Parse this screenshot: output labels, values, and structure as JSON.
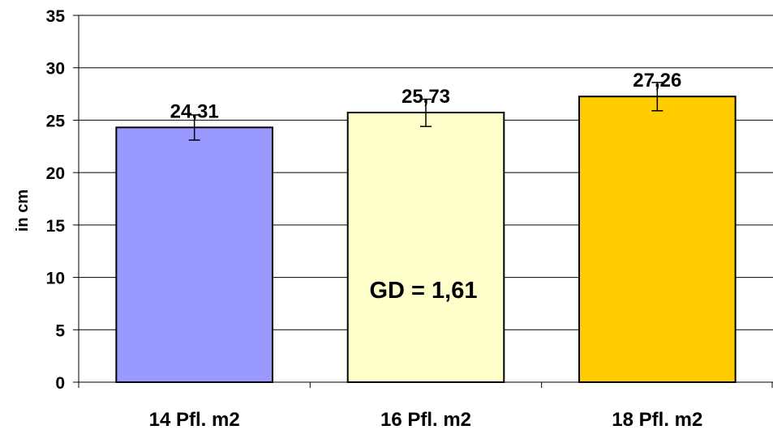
{
  "chart_data": {
    "type": "bar",
    "categories": [
      "14 Pfl. m2",
      "16 Pfl. m2",
      "18 Pfl. m2"
    ],
    "values": [
      24.31,
      25.73,
      27.26
    ],
    "value_labels": [
      "24,31",
      "25,73",
      "27,26"
    ],
    "error_bars": [
      {
        "low": 23.1,
        "high": 25.5
      },
      {
        "low": 24.4,
        "high": 27.0
      },
      {
        "low": 25.9,
        "high": 28.6
      }
    ],
    "bar_colors": [
      "#9999ff",
      "#ffffcc",
      "#ffcc00"
    ],
    "ylabel": "in cm",
    "xlabel": "",
    "title": "",
    "ylim": [
      0,
      35
    ],
    "yticks": [
      0,
      5,
      10,
      15,
      20,
      25,
      30,
      35
    ],
    "grid": true,
    "legend": "none",
    "annotation": "GD = 1,61"
  }
}
